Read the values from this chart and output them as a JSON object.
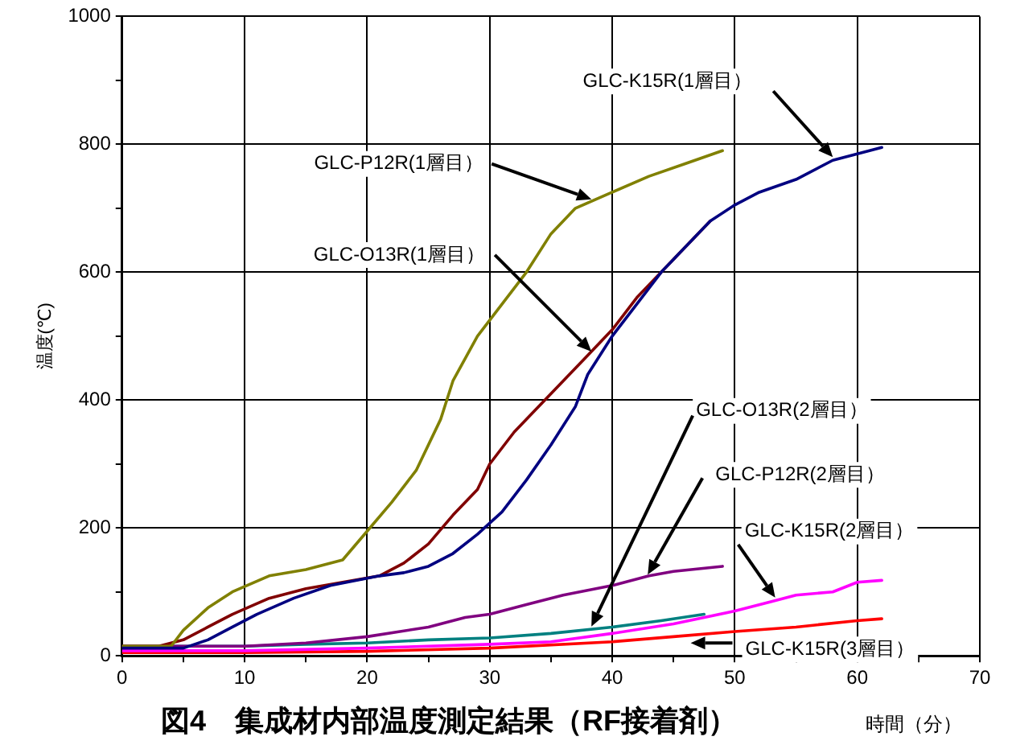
{
  "chart_data": {
    "type": "line",
    "title": "図4　集成材内部温度測定結果（RF接着剤）",
    "xlabel": "時間（分）",
    "ylabel": "温度(℃)",
    "xlim": [
      0,
      70
    ],
    "xticks": [
      0,
      {
        "value": 5,
        "label": null
      },
      10,
      {
        "value": 15,
        "label": null
      },
      20,
      {
        "value": 25,
        "label": null
      },
      30,
      {
        "value": 35,
        "label": null
      },
      40,
      {
        "value": 45,
        "label": null
      },
      50,
      {
        "value": 55,
        "label": null
      },
      60,
      {
        "value": 65,
        "label": null
      },
      70
    ],
    "ylim": [
      0,
      1000
    ],
    "yticks": [
      0,
      {
        "value": 100,
        "label": null
      },
      200,
      {
        "value": 300,
        "label": null
      },
      400,
      {
        "value": 500,
        "label": null
      },
      600,
      {
        "value": 700,
        "label": null
      },
      800,
      {
        "value": 900,
        "label": null
      },
      1000
    ],
    "grid": true,
    "legend": false,
    "marker": "none",
    "line_style": "solid",
    "series": [
      {
        "color": "#000080",
        "x": [
          0,
          5,
          7,
          9,
          11,
          14,
          17,
          21,
          23,
          25,
          27,
          29,
          31,
          33,
          35,
          37,
          38,
          40,
          42,
          44,
          46,
          48,
          50,
          52,
          55,
          58,
          60,
          62
        ],
        "values": [
          12,
          12,
          25,
          45,
          65,
          90,
          110,
          125,
          130,
          140,
          160,
          190,
          225,
          275,
          330,
          390,
          440,
          500,
          550,
          600,
          640,
          680,
          705,
          725,
          745,
          775,
          785,
          795
        ]
      },
      {
        "color": "#808000",
        "x": [
          0,
          4,
          5,
          7,
          9,
          12,
          15,
          18,
          20,
          22,
          24,
          26,
          27,
          29,
          31,
          33,
          35,
          37,
          40,
          43,
          46,
          49
        ],
        "values": [
          15,
          15,
          40,
          75,
          100,
          125,
          135,
          150,
          195,
          240,
          290,
          370,
          430,
          500,
          550,
          600,
          660,
          700,
          725,
          750,
          770,
          790
        ]
      },
      {
        "color": "#800000",
        "x": [
          0,
          3,
          5,
          7,
          9,
          12,
          15,
          18,
          21,
          23,
          25,
          27,
          29,
          30,
          32,
          34,
          36,
          38,
          40,
          42,
          44,
          46,
          48
        ],
        "values": [
          15,
          15,
          25,
          45,
          65,
          90,
          105,
          115,
          125,
          145,
          175,
          220,
          260,
          300,
          350,
          390,
          430,
          470,
          510,
          560,
          600,
          640,
          680
        ]
      },
      {
        "color": "#800080",
        "x": [
          0,
          5,
          10,
          15,
          20,
          25,
          28,
          30,
          33,
          36,
          40,
          43,
          45,
          49
        ],
        "values": [
          15,
          15,
          15,
          20,
          30,
          45,
          60,
          65,
          80,
          95,
          110,
          125,
          132,
          140
        ]
      },
      {
        "color": "#008080",
        "x": [
          0,
          10,
          15,
          20,
          25,
          30,
          35,
          40,
          44,
          47.5
        ],
        "values": [
          15,
          15,
          18,
          20,
          25,
          28,
          35,
          45,
          55,
          65
        ]
      },
      {
        "color": "#ff00ff",
        "x": [
          0,
          10,
          20,
          30,
          35,
          40,
          45,
          50,
          53,
          55,
          58,
          60,
          62
        ],
        "values": [
          8,
          8,
          12,
          18,
          22,
          35,
          50,
          70,
          85,
          95,
          100,
          115,
          118
        ]
      },
      {
        "color": "#ff0000",
        "x": [
          0,
          10,
          20,
          30,
          40,
          45,
          50,
          55,
          60,
          62
        ],
        "values": [
          5,
          5,
          7,
          12,
          22,
          30,
          38,
          45,
          55,
          58
        ]
      }
    ],
    "annotations": [
      {
        "text": "GLC-K15R(1層目）",
        "x": 58,
        "y": 780
      },
      {
        "text": "GLC-P12R(1層目）",
        "x": 38.3,
        "y": 714
      },
      {
        "text": "GLC-O13R(1層目）",
        "x": 38.3,
        "y": 476
      },
      {
        "text": "GLC-O13R(2層目）",
        "x": 38.3,
        "y": 46
      },
      {
        "text": "GLC-P12R(2層目）",
        "x": 42.9,
        "y": 127
      },
      {
        "text": "GLC-K15R(2層目）",
        "x": 53.3,
        "y": 91
      },
      {
        "text": "GLC-K15R(3層目）",
        "x": 46.4,
        "y": 20
      }
    ]
  }
}
